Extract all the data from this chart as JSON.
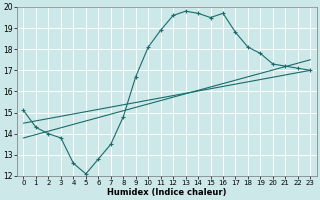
{
  "title": "",
  "xlabel": "Humidex (Indice chaleur)",
  "bg_color": "#cce8e8",
  "line_color": "#1a6b6b",
  "grid_color": "#ffffff",
  "xlim": [
    -0.5,
    23.5
  ],
  "ylim": [
    12,
    20
  ],
  "xticks": [
    0,
    1,
    2,
    3,
    4,
    5,
    6,
    7,
    8,
    9,
    10,
    11,
    12,
    13,
    14,
    15,
    16,
    17,
    18,
    19,
    20,
    21,
    22,
    23
  ],
  "yticks": [
    12,
    13,
    14,
    15,
    16,
    17,
    18,
    19,
    20
  ],
  "curve_x": [
    0,
    1,
    2,
    3,
    4,
    5,
    6,
    7,
    8,
    9,
    10,
    11,
    12,
    13,
    14,
    15,
    16,
    17,
    18,
    19,
    20,
    21,
    22,
    23
  ],
  "curve_y": [
    15.1,
    14.3,
    14.0,
    13.8,
    12.6,
    12.1,
    12.8,
    13.5,
    14.8,
    16.7,
    18.1,
    18.9,
    19.6,
    19.8,
    19.7,
    19.5,
    19.7,
    18.8,
    18.1,
    17.8,
    17.3,
    17.2,
    17.1,
    17.0
  ],
  "line1_x": [
    0,
    23
  ],
  "line1_y": [
    13.8,
    17.5
  ],
  "line2_x": [
    0,
    23
  ],
  "line2_y": [
    14.5,
    17.0
  ]
}
